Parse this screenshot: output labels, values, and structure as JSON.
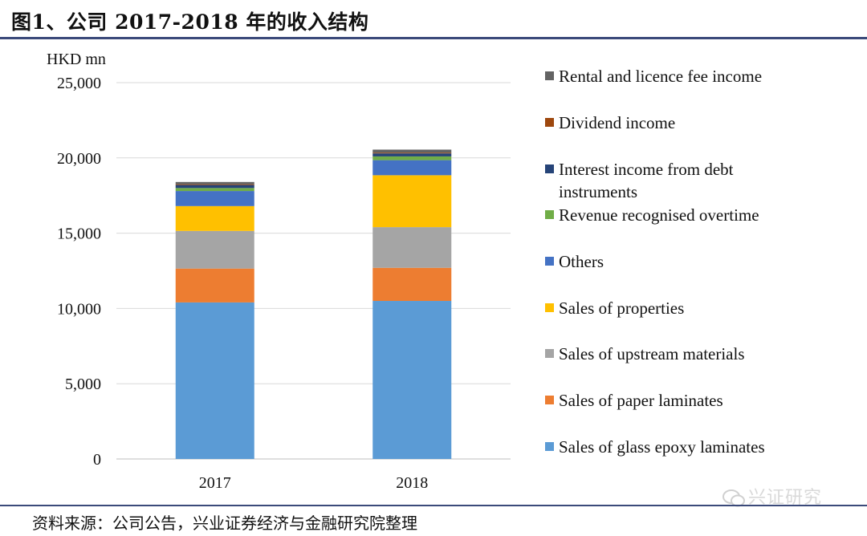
{
  "header": {
    "title": "图1、公司 2017-2018 年的收入结构"
  },
  "footer": {
    "source": "资料来源：公司公告，兴业证券经济与金融研究院整理"
  },
  "watermark": {
    "text": "兴证研究",
    "icon": "wechat-icon"
  },
  "chart_data": {
    "type": "bar",
    "stacked": true,
    "unit_label": "HKD mn",
    "categories": [
      "2017",
      "2018"
    ],
    "ylim": [
      0,
      25000
    ],
    "yticks": [
      0,
      5000,
      10000,
      15000,
      20000,
      25000
    ],
    "ytick_labels": [
      "0",
      "5,000",
      "10,000",
      "15,000",
      "20,000",
      "25,000"
    ],
    "grid": true,
    "legend_position": "right",
    "series": [
      {
        "name": "Sales of glass epoxy laminates",
        "color": "#5b9bd5",
        "values": [
          10400,
          10500
        ]
      },
      {
        "name": "Sales of paper laminates",
        "color": "#ed7d31",
        "values": [
          2250,
          2200
        ]
      },
      {
        "name": "Sales of upstream materials",
        "color": "#a5a5a5",
        "values": [
          2500,
          2700
        ]
      },
      {
        "name": "Sales of properties",
        "color": "#ffc000",
        "values": [
          1650,
          3450
        ]
      },
      {
        "name": "Others",
        "color": "#4472c4",
        "values": [
          1000,
          1000
        ]
      },
      {
        "name": "Revenue recognised overtime",
        "color": "#70ad47",
        "values": [
          200,
          250
        ]
      },
      {
        "name": "Interest income from debt instruments",
        "color": "#264478",
        "values": [
          200,
          200
        ]
      },
      {
        "name": "Dividend income",
        "color": "#9e480e",
        "values": [
          50,
          50
        ]
      },
      {
        "name": "Rental and licence fee income",
        "color": "#636363",
        "values": [
          150,
          200
        ]
      }
    ]
  }
}
